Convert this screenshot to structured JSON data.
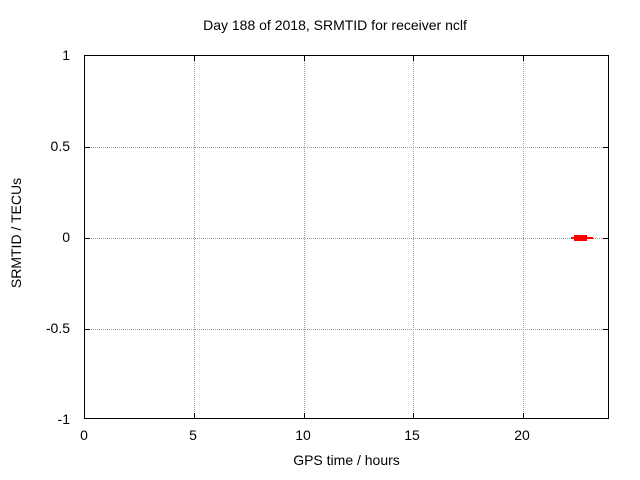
{
  "chart_data": {
    "type": "scatter",
    "title": "Day 188 of 2018, SRMTID for receiver nclf",
    "xlabel": "GPS time / hours",
    "ylabel": "SRMTID / TECUs",
    "xlim": [
      0,
      24
    ],
    "ylim": [
      -1,
      1
    ],
    "x_ticks": [
      0,
      5,
      10,
      15,
      20
    ],
    "x_tick_labels": [
      "0",
      "5",
      "10",
      "15",
      "20"
    ],
    "y_ticks": [
      1,
      0.5,
      0,
      -0.5,
      -1
    ],
    "y_tick_labels": [
      "1",
      "0.5",
      "0",
      "-0.5",
      "-1"
    ],
    "grid": true,
    "legend_position": "none",
    "colors": {
      "marker": "#ff0000",
      "grid": "#9e9e9e",
      "axis": "#000000",
      "background": "#ffffff"
    },
    "series": [
      {
        "name": "SRMTID",
        "color": "#ff0000",
        "y": 0,
        "line_x_range": [
          22.2,
          23.2
        ],
        "box_x_range": [
          22.35,
          22.95
        ],
        "description": "dense cluster of red points near hour 22.7 with SRMTID value 0, thin connecting line extending from ~22.2 to ~23.2 hours"
      }
    ]
  }
}
